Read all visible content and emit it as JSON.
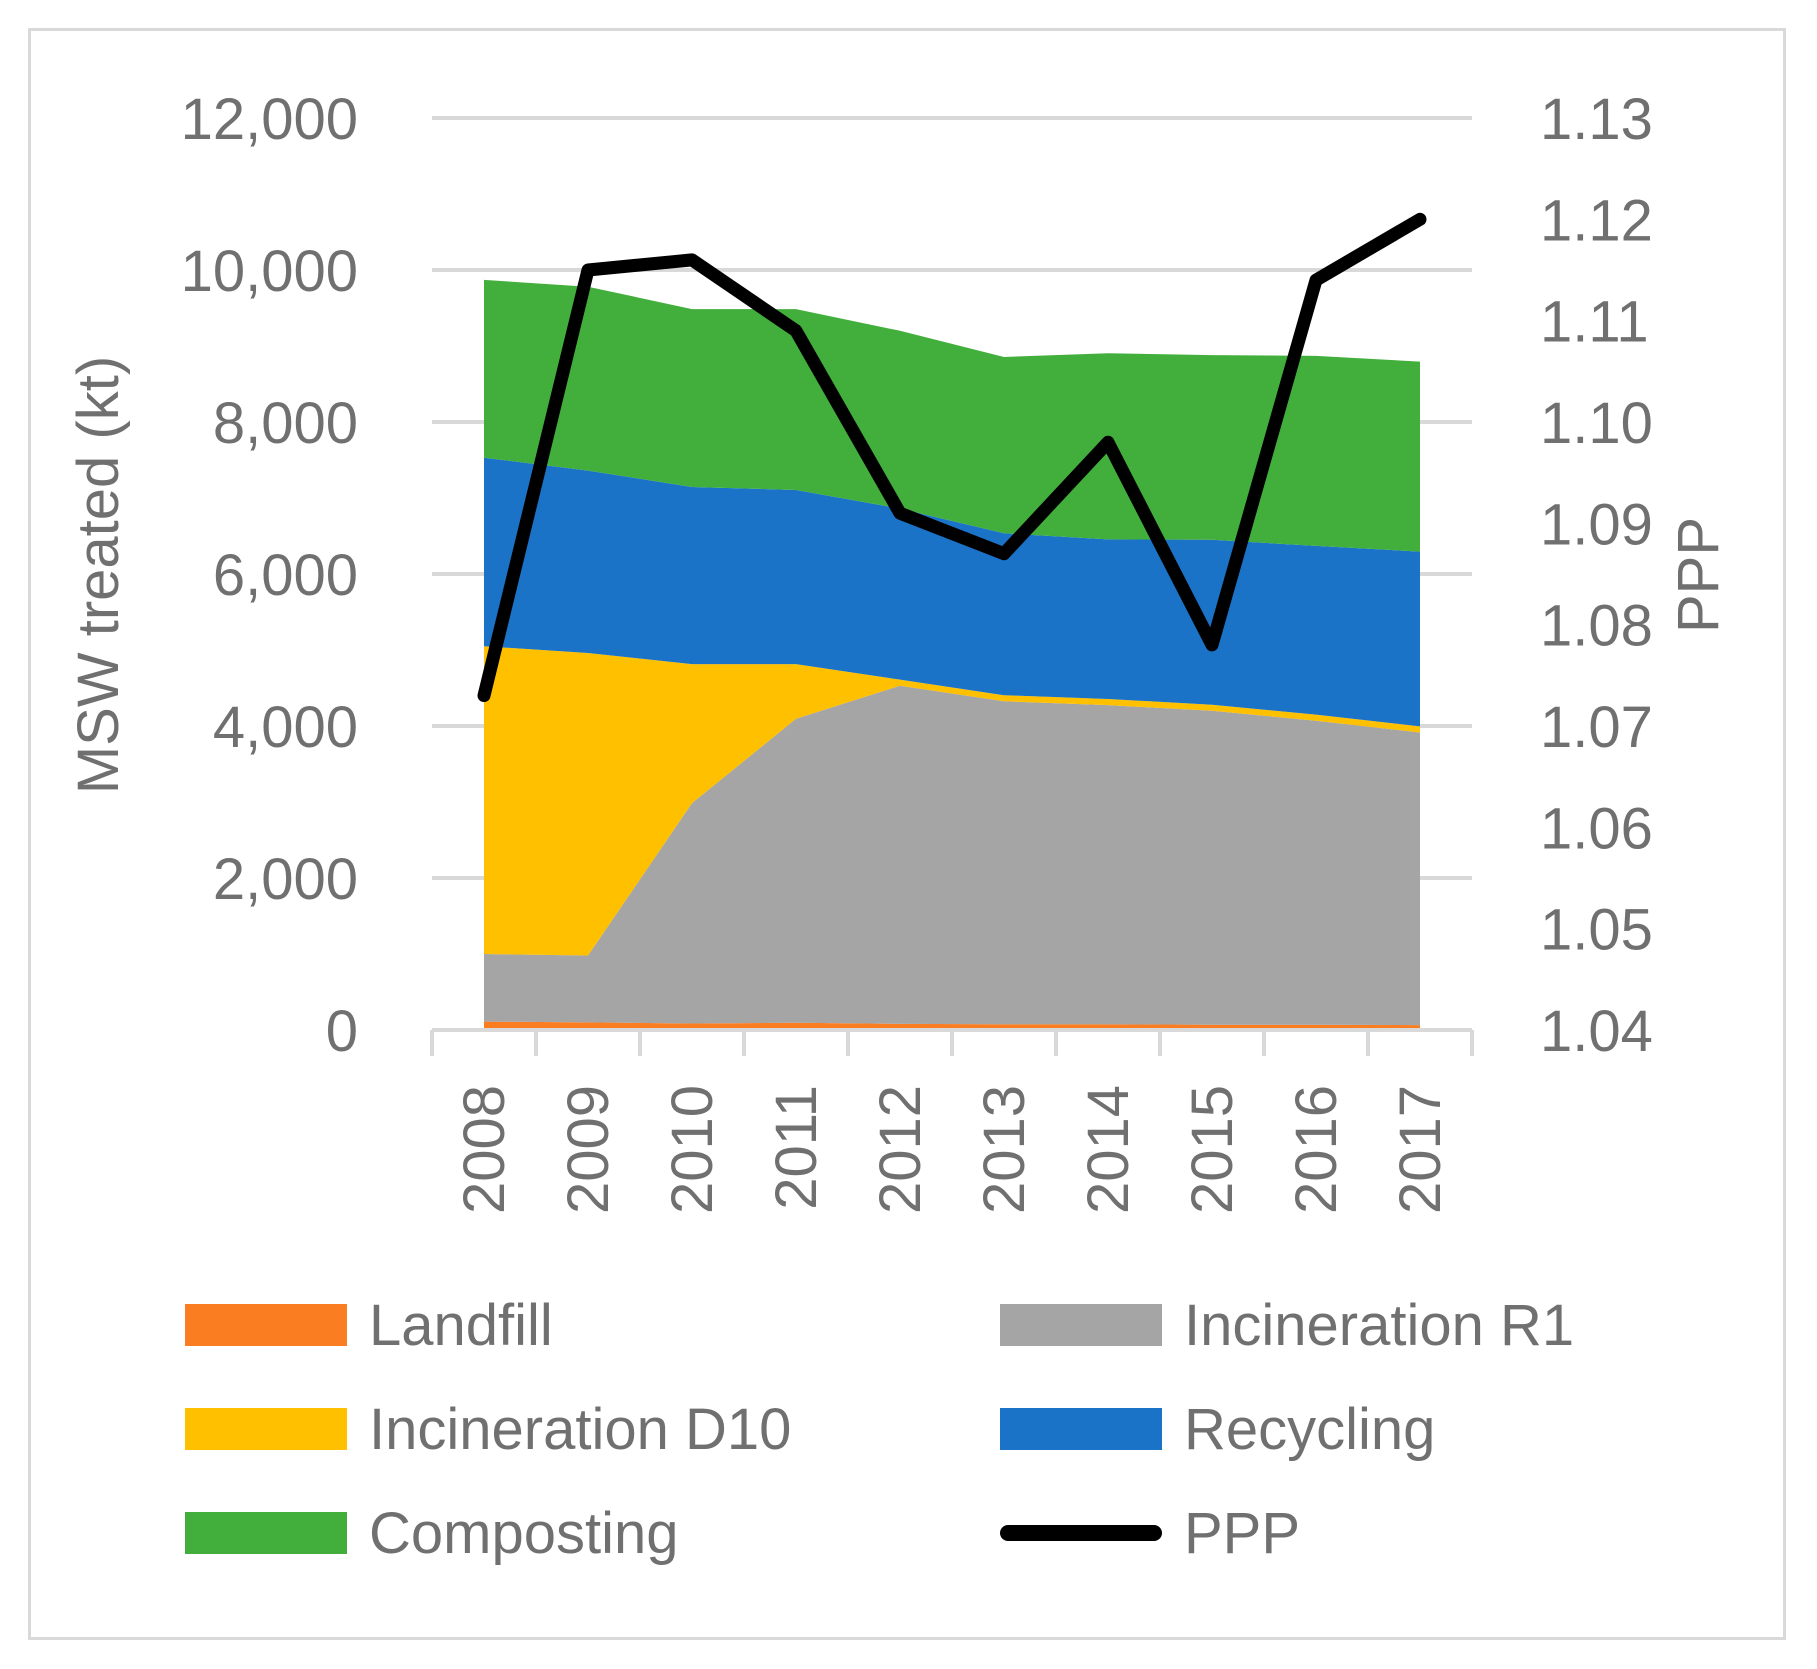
{
  "chart_data": {
    "type": "area",
    "stacked": true,
    "x": [
      "2008",
      "2009",
      "2010",
      "2011",
      "2012",
      "2013",
      "2014",
      "2015",
      "2016",
      "2017"
    ],
    "series": [
      {
        "name": "Landfill",
        "axis": "left",
        "color": "#fa7d22",
        "values": [
          110,
          100,
          85,
          95,
          80,
          75,
          75,
          70,
          70,
          65
        ]
      },
      {
        "name": "Incineration R1",
        "axis": "left",
        "color": "#a5a5a5",
        "values": [
          890,
          880,
          2900,
          4000,
          4450,
          4250,
          4200,
          4130,
          4000,
          3850
        ]
      },
      {
        "name": "Incineration D10",
        "axis": "left",
        "color": "#ffc000",
        "values": [
          4050,
          3980,
          1830,
          720,
          80,
          80,
          80,
          80,
          80,
          80
        ]
      },
      {
        "name": "Recycling",
        "axis": "left",
        "color": "#1a73c7",
        "values": [
          2480,
          2400,
          2330,
          2290,
          2250,
          2130,
          2100,
          2170,
          2220,
          2300
        ]
      },
      {
        "name": "Composting",
        "axis": "left",
        "color": "#42af3c",
        "values": [
          2340,
          2420,
          2340,
          2380,
          2340,
          2320,
          2450,
          2430,
          2500,
          2500
        ]
      },
      {
        "name": "PPP",
        "axis": "right",
        "type": "line",
        "color": "#000000",
        "values": [
          1.073,
          1.115,
          1.116,
          1.109,
          1.091,
          1.087,
          1.098,
          1.078,
          1.114,
          1.12
        ]
      }
    ],
    "y_left": {
      "label": "MSW treated (kt)",
      "min": 0,
      "max": 12000,
      "ticks": [
        0,
        2000,
        4000,
        6000,
        8000,
        10000,
        12000
      ],
      "tick_labels": [
        "0",
        "2,000",
        "4,000",
        "6,000",
        "8,000",
        "10,000",
        "12,000"
      ]
    },
    "y_right": {
      "label": "PPP",
      "min": 1.04,
      "max": 1.13,
      "ticks": [
        1.04,
        1.05,
        1.06,
        1.07,
        1.08,
        1.09,
        1.1,
        1.11,
        1.12,
        1.13
      ],
      "tick_labels": [
        "1.04",
        "1.05",
        "1.06",
        "1.07",
        "1.08",
        "1.09",
        "1.10",
        "1.11",
        "1.12",
        "1.13"
      ]
    },
    "grid": true,
    "legend": {
      "position": "bottom",
      "entries": [
        "Landfill",
        "Incineration R1",
        "Incineration D10",
        "Recycling",
        "Composting",
        "PPP"
      ]
    }
  }
}
